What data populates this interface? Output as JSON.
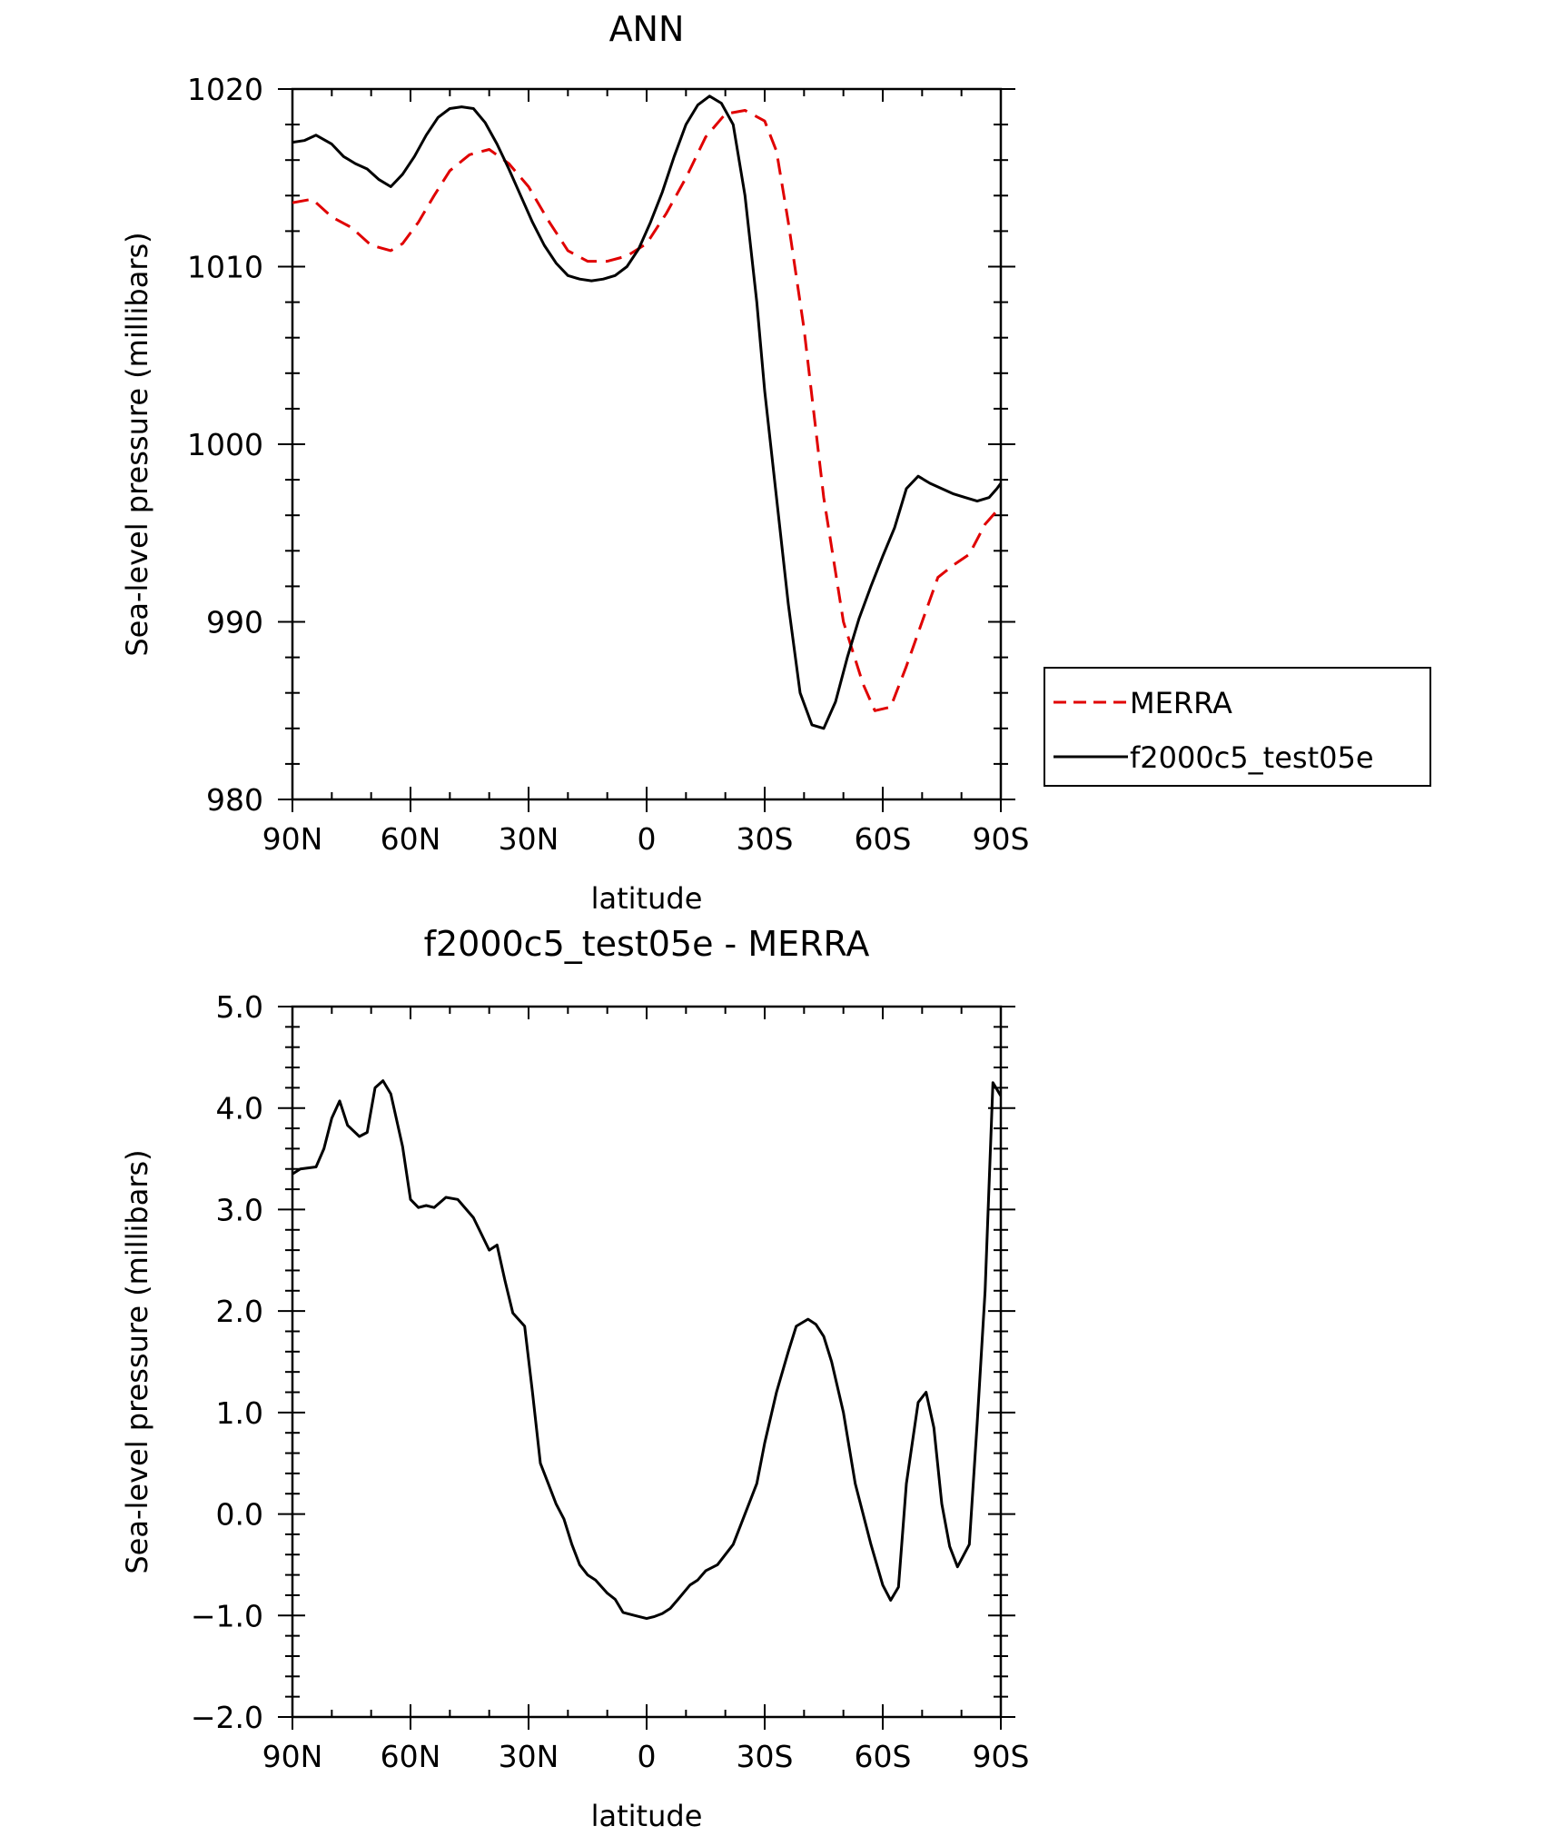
{
  "chart_data": [
    {
      "type": "line",
      "title": "ANN",
      "xlabel": "latitude",
      "ylabel": "Sea-level pressure (millibars)",
      "xlim": [
        90,
        -90
      ],
      "ylim": [
        980,
        1020
      ],
      "x_ticks": [
        {
          "value": 90,
          "label": "90N"
        },
        {
          "value": 60,
          "label": "60N"
        },
        {
          "value": 30,
          "label": "30N"
        },
        {
          "value": 0,
          "label": "0"
        },
        {
          "value": -30,
          "label": "30S"
        },
        {
          "value": -60,
          "label": "60S"
        },
        {
          "value": -90,
          "label": "90S"
        }
      ],
      "y_ticks": [
        {
          "value": 980,
          "label": "980"
        },
        {
          "value": 990,
          "label": "990"
        },
        {
          "value": 1000,
          "label": "1000"
        },
        {
          "value": 1010,
          "label": "1010"
        },
        {
          "value": 1020,
          "label": "1020"
        }
      ],
      "grid": false,
      "legend_position": "right",
      "series": [
        {
          "name": "MERRA",
          "color": "#e00000",
          "dash": true,
          "x": [
            90,
            85,
            80,
            75,
            70,
            65,
            62,
            58,
            54,
            50,
            45,
            40,
            35,
            30,
            25,
            20,
            15,
            10,
            5,
            0,
            -5,
            -10,
            -15,
            -20,
            -25,
            -30,
            -33,
            -36,
            -40,
            -45,
            -50,
            -55,
            -58,
            -62,
            -66,
            -70,
            -74,
            -78,
            -82,
            -86,
            -90
          ],
          "y": [
            1013.6,
            1013.8,
            1012.8,
            1012.2,
            1011.2,
            1010.9,
            1011.3,
            1012.5,
            1014.0,
            1015.4,
            1016.3,
            1016.6,
            1015.8,
            1014.5,
            1012.6,
            1010.9,
            1010.3,
            1010.3,
            1010.6,
            1011.3,
            1013.0,
            1015.0,
            1017.3,
            1018.6,
            1018.8,
            1018.2,
            1016.5,
            1012.5,
            1006.5,
            997.0,
            990.0,
            986.5,
            985.0,
            985.2,
            987.5,
            990.0,
            992.5,
            993.2,
            993.8,
            995.5,
            996.5
          ]
        },
        {
          "name": "f2000c5_test05e",
          "color": "#000000",
          "dash": false,
          "x": [
            90,
            87,
            84,
            80,
            77,
            74,
            71,
            68,
            65,
            62,
            59,
            56,
            53,
            50,
            47,
            44,
            41,
            38,
            35,
            32,
            29,
            26,
            23,
            20,
            17,
            14,
            11,
            8,
            5,
            2,
            -1,
            -4,
            -7,
            -10,
            -13,
            -16,
            -19,
            -22,
            -25,
            -28,
            -30,
            -33,
            -36,
            -39,
            -42,
            -45,
            -48,
            -51,
            -54,
            -57,
            -60,
            -63,
            -66,
            -69,
            -72,
            -75,
            -78,
            -81,
            -84,
            -87,
            -89,
            -90
          ],
          "y": [
            1017.0,
            1017.1,
            1017.4,
            1016.9,
            1016.2,
            1015.8,
            1015.5,
            1014.9,
            1014.5,
            1015.2,
            1016.2,
            1017.4,
            1018.4,
            1018.9,
            1019.0,
            1018.9,
            1018.1,
            1016.9,
            1015.5,
            1014.0,
            1012.5,
            1011.2,
            1010.2,
            1009.5,
            1009.3,
            1009.2,
            1009.3,
            1009.5,
            1010.0,
            1011.0,
            1012.5,
            1014.2,
            1016.2,
            1018.0,
            1019.1,
            1019.6,
            1019.2,
            1018.0,
            1014.0,
            1008.0,
            1003.0,
            997.0,
            991.0,
            986.0,
            984.2,
            984.0,
            985.5,
            988.0,
            990.2,
            992.0,
            993.7,
            995.3,
            997.5,
            998.2,
            997.8,
            997.5,
            997.2,
            997.0,
            996.8,
            997.0,
            997.5,
            997.8
          ]
        }
      ]
    },
    {
      "type": "line",
      "title": "f2000c5_test05e - MERRA",
      "xlabel": "latitude",
      "ylabel": "Sea-level pressure (millibars)",
      "xlim": [
        90,
        -90
      ],
      "ylim": [
        -2.0,
        5.0
      ],
      "x_ticks": [
        {
          "value": 90,
          "label": "90N"
        },
        {
          "value": 60,
          "label": "60N"
        },
        {
          "value": 30,
          "label": "30N"
        },
        {
          "value": 0,
          "label": "0"
        },
        {
          "value": -30,
          "label": "30S"
        },
        {
          "value": -60,
          "label": "60S"
        },
        {
          "value": -90,
          "label": "90S"
        }
      ],
      "y_ticks": [
        {
          "value": -2.0,
          "label": "−2.0"
        },
        {
          "value": -1.0,
          "label": "−1.0"
        },
        {
          "value": 0.0,
          "label": "0.0"
        },
        {
          "value": 1.0,
          "label": "1.0"
        },
        {
          "value": 2.0,
          "label": "2.0"
        },
        {
          "value": 3.0,
          "label": "3.0"
        },
        {
          "value": 4.0,
          "label": "4.0"
        },
        {
          "value": 5.0,
          "label": "5.0"
        }
      ],
      "grid": false,
      "series": [
        {
          "color": "#000000",
          "dash": false,
          "x": [
            90,
            88,
            84,
            82,
            80,
            78,
            76,
            73,
            71,
            69,
            67,
            65,
            62,
            60,
            58,
            56,
            54,
            51,
            48,
            44,
            40,
            38,
            36,
            34,
            31,
            29,
            27,
            25,
            23,
            21,
            19,
            17,
            15,
            13,
            10,
            8,
            6,
            3,
            0,
            -2,
            -4,
            -6,
            -8,
            -11,
            -13,
            -15,
            -18,
            -22,
            -25,
            -28,
            -30,
            -33,
            -36,
            -38,
            -41,
            -43,
            -45,
            -47,
            -50,
            -53,
            -57,
            -60,
            -62,
            -64,
            -66,
            -69,
            -71,
            -73,
            -75,
            -77,
            -79,
            -82,
            -84,
            -86,
            -88,
            -90
          ],
          "y": [
            3.35,
            3.4,
            3.42,
            3.6,
            3.9,
            4.07,
            3.83,
            3.72,
            3.76,
            4.2,
            4.27,
            4.14,
            3.62,
            3.1,
            3.02,
            3.04,
            3.02,
            3.12,
            3.1,
            2.92,
            2.6,
            2.65,
            2.3,
            1.98,
            1.85,
            1.2,
            0.5,
            0.3,
            0.1,
            -0.05,
            -0.3,
            -0.5,
            -0.6,
            -0.65,
            -0.78,
            -0.84,
            -0.97,
            -1.0,
            -1.03,
            -1.01,
            -0.98,
            -0.93,
            -0.84,
            -0.7,
            -0.65,
            -0.56,
            -0.5,
            -0.3,
            0.0,
            0.3,
            0.7,
            1.2,
            1.6,
            1.85,
            1.92,
            1.87,
            1.75,
            1.5,
            1.0,
            0.3,
            -0.3,
            -0.7,
            -0.85,
            -0.72,
            0.3,
            1.1,
            1.2,
            0.85,
            0.1,
            -0.32,
            -0.52,
            -0.3,
            0.9,
            2.2,
            4.25,
            4.12
          ]
        }
      ]
    }
  ]
}
